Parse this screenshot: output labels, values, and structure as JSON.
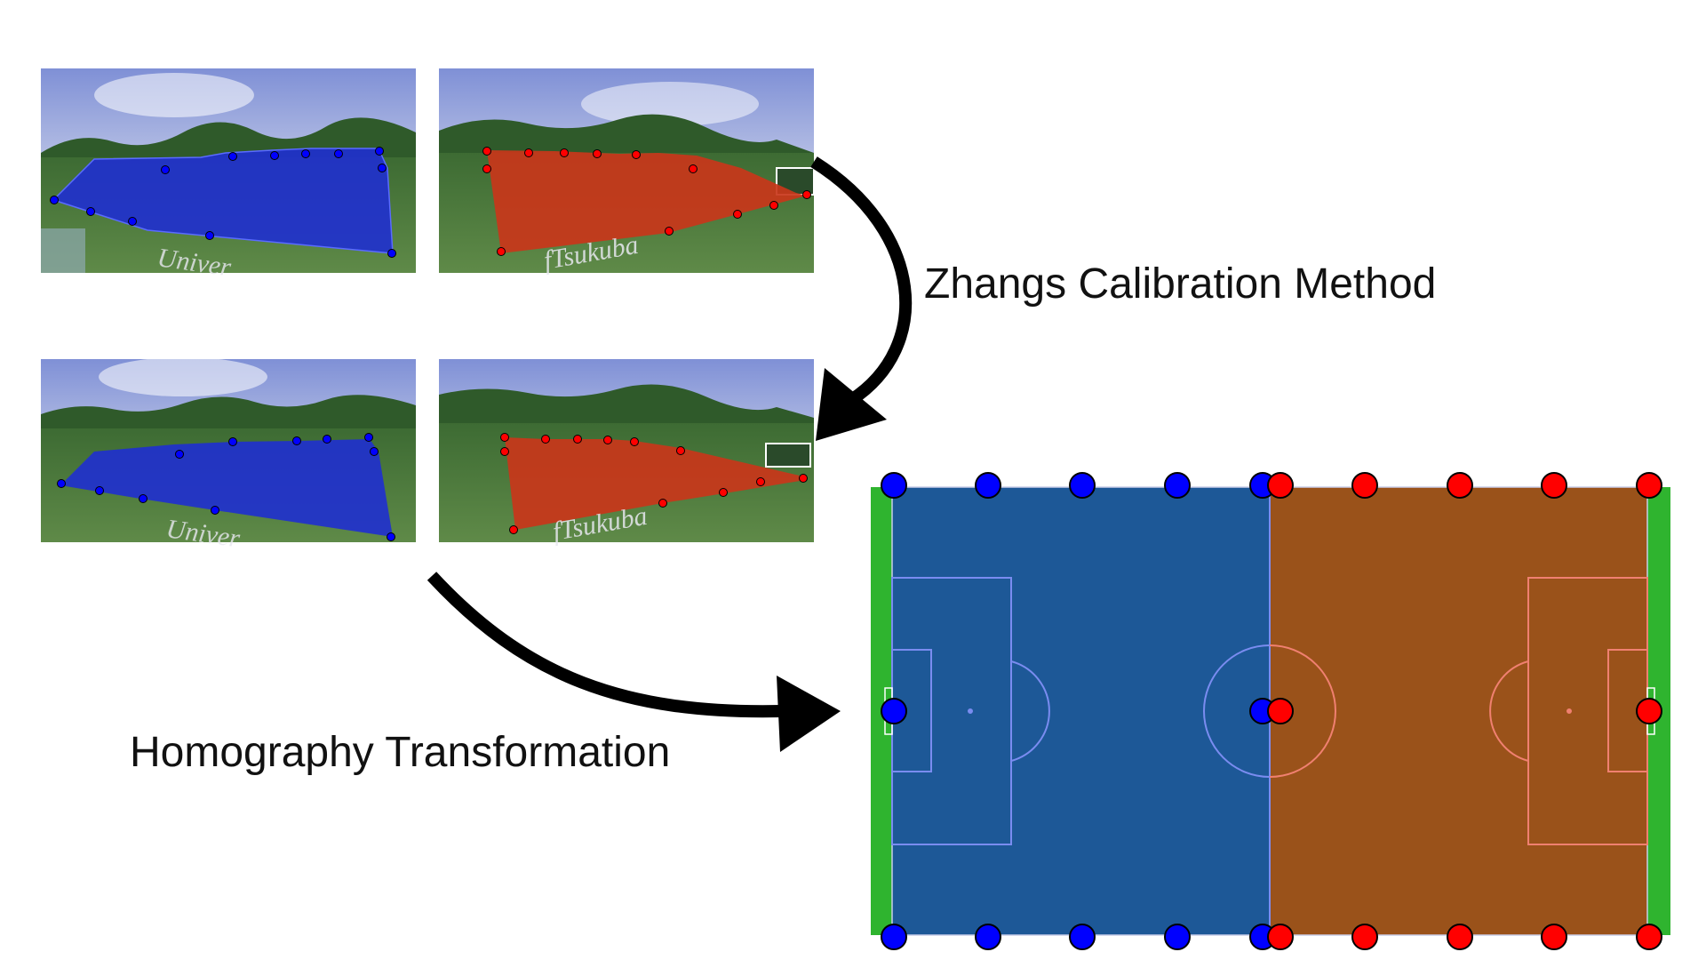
{
  "labels": {
    "calibration": "Zhangs Calibration Method",
    "homography": "Homography Transformation"
  },
  "banner_text": {
    "left": "Univer",
    "right": "fTsukuba"
  },
  "colors": {
    "blue_point": "#0000ff",
    "red_point": "#ff0000",
    "blue_half": "#1d5897",
    "orange_half": "#9a521a",
    "goal_green": "#2fb42f",
    "blue_region": "#1f2fd0",
    "red_region": "#c9361a",
    "sky": "#9aa8d8",
    "trees": "#2f5a2a",
    "grass": "#4f7a3c",
    "arrow": "#000000"
  },
  "icons": {
    "arrows": "curved-arrow-icon",
    "points": "calibration-point-icon"
  }
}
